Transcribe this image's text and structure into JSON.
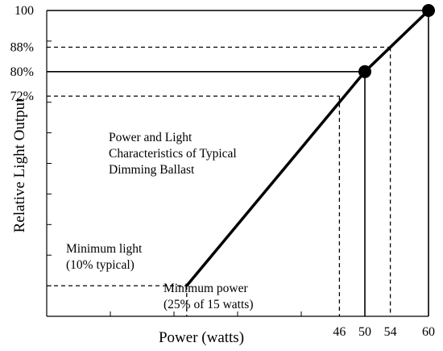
{
  "chart_data": {
    "type": "line",
    "title": "",
    "xlabel": "Power (watts)",
    "ylabel": "Relative Light Output",
    "xlim": [
      0,
      60
    ],
    "ylim": [
      0,
      100
    ],
    "x_tick_labels": [
      {
        "value": 46,
        "label": "46"
      },
      {
        "value": 50,
        "label": "50"
      },
      {
        "value": 54,
        "label": "54"
      },
      {
        "value": 60,
        "label": "60"
      }
    ],
    "y_tick_labels": [
      {
        "value": 100,
        "label": "100"
      },
      {
        "value": 88,
        "label": "88%"
      },
      {
        "value": 80,
        "label": "80%"
      },
      {
        "value": 72,
        "label": "72%"
      }
    ],
    "series": [
      {
        "x": [
          22,
          50,
          60
        ],
        "y": [
          10,
          80,
          100
        ],
        "marked_points": [
          [
            50,
            80
          ],
          [
            60,
            100
          ]
        ]
      }
    ],
    "reference_lines": [
      {
        "style": "solid",
        "points": [
          [
            0,
            100
          ],
          [
            60,
            100
          ]
        ]
      },
      {
        "style": "solid",
        "points": [
          [
            60,
            100
          ],
          [
            60,
            0
          ]
        ]
      },
      {
        "style": "solid",
        "points": [
          [
            0,
            80
          ],
          [
            50,
            80
          ]
        ]
      },
      {
        "style": "solid",
        "points": [
          [
            50,
            80
          ],
          [
            50,
            0
          ]
        ]
      },
      {
        "style": "dashed",
        "points": [
          [
            0,
            88
          ],
          [
            54,
            88
          ]
        ]
      },
      {
        "style": "dashed",
        "points": [
          [
            54,
            88
          ],
          [
            54,
            0
          ]
        ]
      },
      {
        "style": "dashed",
        "points": [
          [
            0,
            72
          ],
          [
            46,
            72
          ]
        ]
      },
      {
        "style": "dashed",
        "points": [
          [
            46,
            72
          ],
          [
            46,
            0
          ]
        ]
      },
      {
        "style": "dashed",
        "points": [
          [
            0,
            10
          ],
          [
            22,
            10
          ]
        ]
      },
      {
        "style": "dashed",
        "points": [
          [
            22,
            10
          ],
          [
            22,
            0
          ]
        ]
      }
    ],
    "annotations": [
      {
        "lines": [
          "Power and Light",
          "Characteristics of Typical",
          "Dimming Ballast"
        ]
      },
      {
        "lines": [
          "Minimum light",
          "(10% typical)"
        ]
      },
      {
        "lines": [
          "Minimum power",
          "(25% of 15 watts)"
        ]
      }
    ],
    "grid": false,
    "legend": "none"
  }
}
